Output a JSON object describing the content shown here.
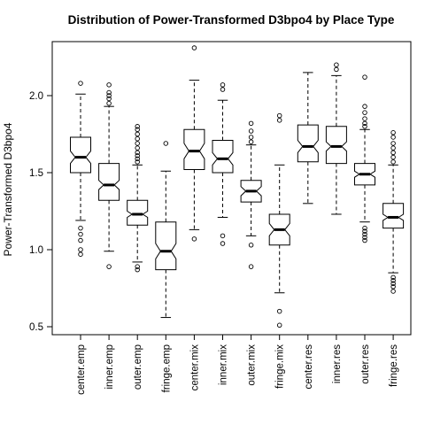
{
  "chart_data": {
    "type": "boxplot",
    "notched": true,
    "title": "Distribution of Power-Transformed D3bpo4 by Place Type",
    "xlabel": "",
    "ylabel": "Power-Transformed D3bpo4",
    "ylim": [
      0.45,
      2.4
    ],
    "yticks": [
      0.5,
      1.0,
      1.5,
      2.0
    ],
    "ytick_labels": [
      "0.5",
      "1.0",
      "1.5",
      "2.0"
    ],
    "grid": false,
    "categories": [
      "center.emp",
      "inner.emp",
      "outer.emp",
      "fringe.emp",
      "center.mix",
      "inner.mix",
      "outer.mix",
      "fringe.mix",
      "center.res",
      "inner.res",
      "outer.res",
      "fringe.res"
    ],
    "boxes": [
      {
        "name": "center.emp",
        "lower_whisker": 1.19,
        "q1": 1.5,
        "median": 1.6,
        "q3": 1.73,
        "upper_whisker": 2.01,
        "notch": [
          1.56,
          1.64
        ],
        "outliers": [
          0.97,
          1.0,
          1.06,
          1.1,
          1.14,
          2.08
        ]
      },
      {
        "name": "inner.emp",
        "lower_whisker": 0.99,
        "q1": 1.32,
        "median": 1.42,
        "q3": 1.56,
        "upper_whisker": 1.93,
        "notch": [
          1.39,
          1.45
        ],
        "outliers": [
          0.89,
          1.95,
          1.98,
          2.0,
          2.02,
          2.07
        ]
      },
      {
        "name": "outer.emp",
        "lower_whisker": 0.92,
        "q1": 1.16,
        "median": 1.23,
        "q3": 1.32,
        "upper_whisker": 1.55,
        "notch": [
          1.21,
          1.25
        ],
        "outliers": [
          0.87,
          0.89,
          1.57,
          1.59,
          1.61,
          1.63,
          1.66,
          1.69,
          1.72,
          1.75,
          1.78,
          1.8
        ]
      },
      {
        "name": "fringe.emp",
        "lower_whisker": 0.56,
        "q1": 0.87,
        "median": 0.99,
        "q3": 1.18,
        "upper_whisker": 1.51,
        "notch": [
          0.94,
          1.04
        ],
        "outliers": [
          1.69
        ]
      },
      {
        "name": "center.mix",
        "lower_whisker": 1.13,
        "q1": 1.52,
        "median": 1.64,
        "q3": 1.78,
        "upper_whisker": 2.1,
        "notch": [
          1.59,
          1.69
        ],
        "outliers": [
          1.07,
          2.31
        ]
      },
      {
        "name": "inner.mix",
        "lower_whisker": 1.21,
        "q1": 1.5,
        "median": 1.59,
        "q3": 1.71,
        "upper_whisker": 1.97,
        "notch": [
          1.55,
          1.63
        ],
        "outliers": [
          1.04,
          1.09,
          2.04,
          2.07
        ]
      },
      {
        "name": "outer.mix",
        "lower_whisker": 1.09,
        "q1": 1.31,
        "median": 1.38,
        "q3": 1.45,
        "upper_whisker": 1.68,
        "notch": [
          1.35,
          1.41
        ],
        "outliers": [
          0.89,
          1.03,
          1.7,
          1.73,
          1.77,
          1.82
        ]
      },
      {
        "name": "fringe.mix",
        "lower_whisker": 0.72,
        "q1": 1.03,
        "median": 1.13,
        "q3": 1.23,
        "upper_whisker": 1.55,
        "notch": [
          1.09,
          1.17
        ],
        "outliers": [
          0.51,
          0.6,
          1.84,
          1.87
        ]
      },
      {
        "name": "center.res",
        "lower_whisker": 1.3,
        "q1": 1.57,
        "median": 1.67,
        "q3": 1.81,
        "upper_whisker": 2.15,
        "notch": [
          1.63,
          1.71
        ],
        "outliers": []
      },
      {
        "name": "inner.res",
        "lower_whisker": 1.23,
        "q1": 1.56,
        "median": 1.67,
        "q3": 1.8,
        "upper_whisker": 2.13,
        "notch": [
          1.64,
          1.7
        ],
        "outliers": [
          2.17,
          2.2
        ]
      },
      {
        "name": "outer.res",
        "lower_whisker": 1.18,
        "q1": 1.42,
        "median": 1.49,
        "q3": 1.56,
        "upper_whisker": 1.78,
        "notch": [
          1.47,
          1.51
        ],
        "outliers": [
          1.06,
          1.08,
          1.1,
          1.12,
          1.14,
          1.8,
          1.82,
          1.85,
          1.89,
          1.93,
          2.12
        ]
      },
      {
        "name": "fringe.res",
        "lower_whisker": 0.85,
        "q1": 1.14,
        "median": 1.21,
        "q3": 1.3,
        "upper_whisker": 1.55,
        "notch": [
          1.19,
          1.23
        ],
        "outliers": [
          0.73,
          0.76,
          0.78,
          0.8,
          0.82,
          1.57,
          1.6,
          1.63,
          1.66,
          1.69,
          1.73,
          1.76
        ]
      }
    ]
  }
}
